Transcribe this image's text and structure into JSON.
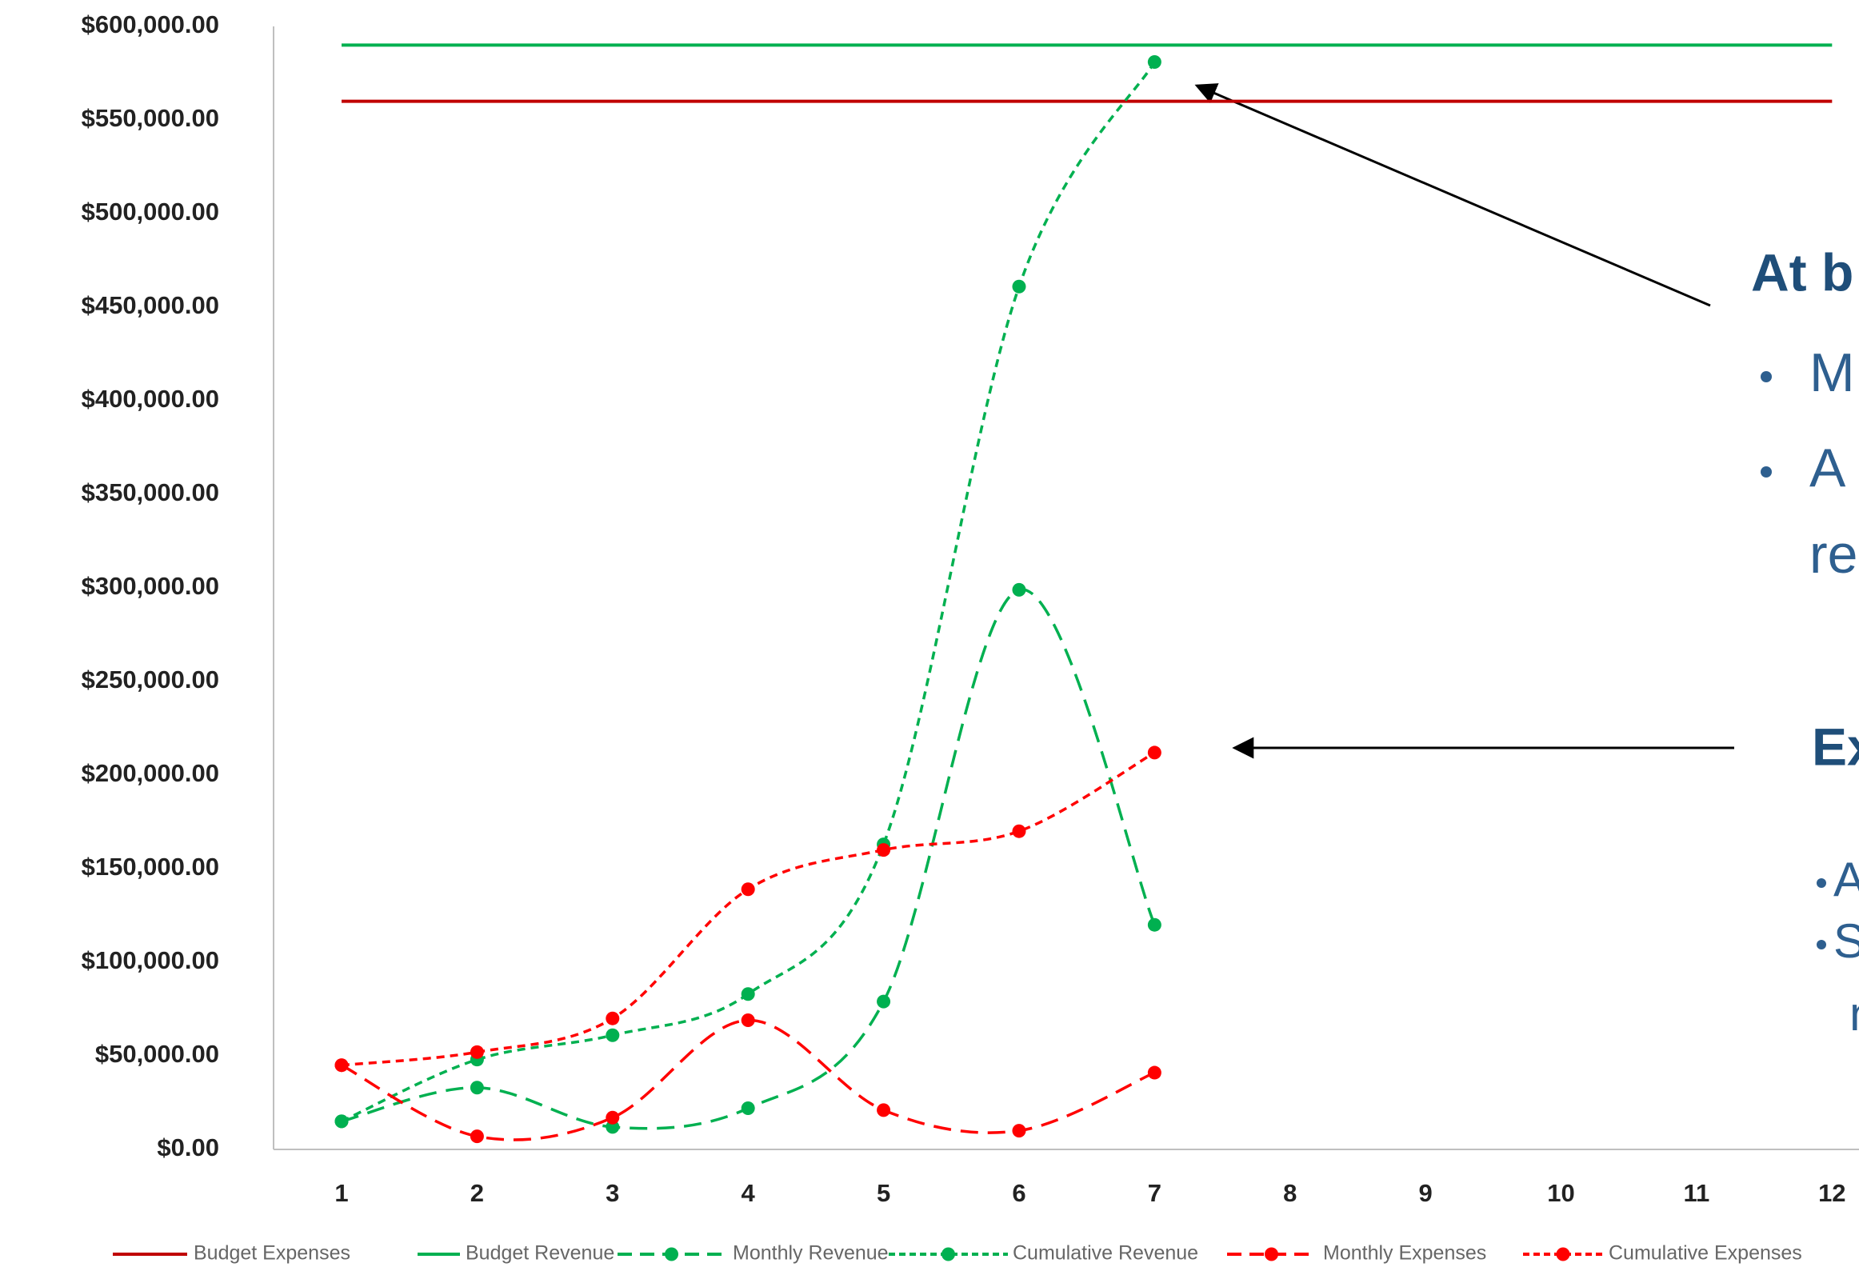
{
  "chart_data": {
    "type": "line",
    "categories": [
      "1",
      "2",
      "3",
      "4",
      "5",
      "6",
      "7",
      "8",
      "9",
      "10",
      "11",
      "12"
    ],
    "ylim": [
      0,
      600000
    ],
    "yticks": [
      {
        "value": 0,
        "label": "$0.00"
      },
      {
        "value": 50000,
        "label": "$50,000.00"
      },
      {
        "value": 100000,
        "label": "$100,000.00"
      },
      {
        "value": 150000,
        "label": "$150,000.00"
      },
      {
        "value": 200000,
        "label": "$200,000.00"
      },
      {
        "value": 250000,
        "label": "$250,000.00"
      },
      {
        "value": 300000,
        "label": "$300,000.00"
      },
      {
        "value": 350000,
        "label": "$350,000.00"
      },
      {
        "value": 400000,
        "label": "$400,000.00"
      },
      {
        "value": 450000,
        "label": "$450,000.00"
      },
      {
        "value": 500000,
        "label": "$500,000.00"
      },
      {
        "value": 550000,
        "label": "$550,000.00"
      },
      {
        "value": 600000,
        "label": "$600,000.00"
      }
    ],
    "series": [
      {
        "name": "Budget Expenses",
        "color": "#c00000",
        "style": "solid",
        "markers": false,
        "values": [
          560000,
          560000,
          560000,
          560000,
          560000,
          560000,
          560000,
          560000,
          560000,
          560000,
          560000,
          560000
        ]
      },
      {
        "name": "Budget Revenue",
        "color": "#00b050",
        "style": "solid",
        "markers": false,
        "values": [
          590000,
          590000,
          590000,
          590000,
          590000,
          590000,
          590000,
          590000,
          590000,
          590000,
          590000,
          590000
        ]
      },
      {
        "name": "Monthly Revenue",
        "color": "#00b050",
        "style": "long-dash",
        "markers": true,
        "values": [
          15000,
          33000,
          12000,
          22000,
          79000,
          299000,
          120000,
          null,
          null,
          null,
          null,
          null
        ]
      },
      {
        "name": "Cumulative Revenue",
        "color": "#00b050",
        "style": "short-dash",
        "markers": true,
        "values": [
          15000,
          48000,
          61000,
          83000,
          163000,
          461000,
          581000,
          null,
          null,
          null,
          null,
          null
        ]
      },
      {
        "name": "Monthly Expenses",
        "color": "#ff0000",
        "style": "long-dash",
        "markers": true,
        "values": [
          45000,
          7000,
          17000,
          69000,
          21000,
          10000,
          41000,
          null,
          null,
          null,
          null,
          null
        ]
      },
      {
        "name": "Cumulative Expenses",
        "color": "#ff0000",
        "style": "short-dash",
        "markers": true,
        "values": [
          45000,
          52000,
          70000,
          139000,
          160000,
          170000,
          212000,
          null,
          null,
          null,
          null,
          null
        ]
      }
    ],
    "annotations": [
      "At b",
      "M",
      "A",
      "re",
      "Ex",
      "A",
      "S",
      "n"
    ]
  }
}
